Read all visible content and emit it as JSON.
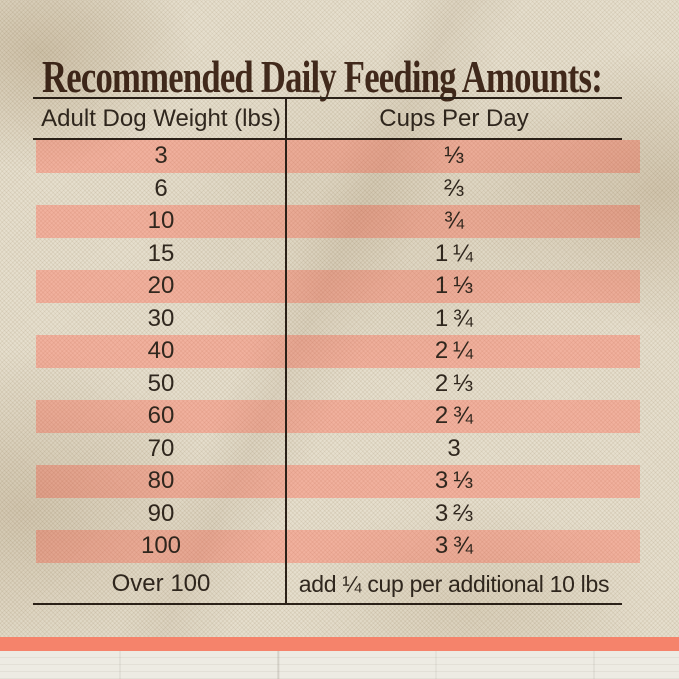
{
  "title": "Recommended Daily Feeding Amounts:",
  "table": {
    "headers": [
      "Adult Dog Weight (lbs)",
      "Cups Per Day"
    ],
    "rows": [
      {
        "weight": "3",
        "cups": "⅓",
        "highlight": true
      },
      {
        "weight": "6",
        "cups": "⅔",
        "highlight": false
      },
      {
        "weight": "10",
        "cups": "¾",
        "highlight": true
      },
      {
        "weight": "15",
        "cups": "1 ¼",
        "highlight": false
      },
      {
        "weight": "20",
        "cups": "1 ⅓",
        "highlight": true
      },
      {
        "weight": "30",
        "cups": "1 ¾",
        "highlight": false
      },
      {
        "weight": "40",
        "cups": "2 ¼",
        "highlight": true
      },
      {
        "weight": "50",
        "cups": "2 ⅓",
        "highlight": false
      },
      {
        "weight": "60",
        "cups": "2 ¾",
        "highlight": true
      },
      {
        "weight": "70",
        "cups": "3",
        "highlight": false
      },
      {
        "weight": "80",
        "cups": "3 ⅓",
        "highlight": true
      },
      {
        "weight": "90",
        "cups": "3 ⅔",
        "highlight": false
      },
      {
        "weight": "100",
        "cups": "3 ¾",
        "highlight": true
      },
      {
        "weight": "Over 100",
        "cups": "add ¼ cup per additional 10 lbs",
        "highlight": false
      }
    ]
  },
  "chart_data": {
    "type": "table",
    "title": "Recommended Daily Feeding Amounts:",
    "columns": [
      "Adult Dog Weight (lbs)",
      "Cups Per Day"
    ],
    "rows": [
      [
        "3",
        "1/3"
      ],
      [
        "6",
        "2/3"
      ],
      [
        "10",
        "3/4"
      ],
      [
        "15",
        "1 1/4"
      ],
      [
        "20",
        "1 1/3"
      ],
      [
        "30",
        "1 3/4"
      ],
      [
        "40",
        "2 1/4"
      ],
      [
        "50",
        "2 1/3"
      ],
      [
        "60",
        "2 3/4"
      ],
      [
        "70",
        "3"
      ],
      [
        "80",
        "3 1/3"
      ],
      [
        "90",
        "3 2/3"
      ],
      [
        "100",
        "3 3/4"
      ],
      [
        "Over 100",
        "add 1/4 cup per additional 10 lbs"
      ]
    ],
    "layout": "alternating pink highlight stripes on rows 1,3,5,7,9,11,13"
  },
  "colors": {
    "stripe": "#f1b19e",
    "accent_bar": "#f5836b",
    "title_text": "#41291b",
    "table_text": "#30271e",
    "line": "#2b2118",
    "burlap": "#e6dfce",
    "wood": "#edebe3"
  }
}
